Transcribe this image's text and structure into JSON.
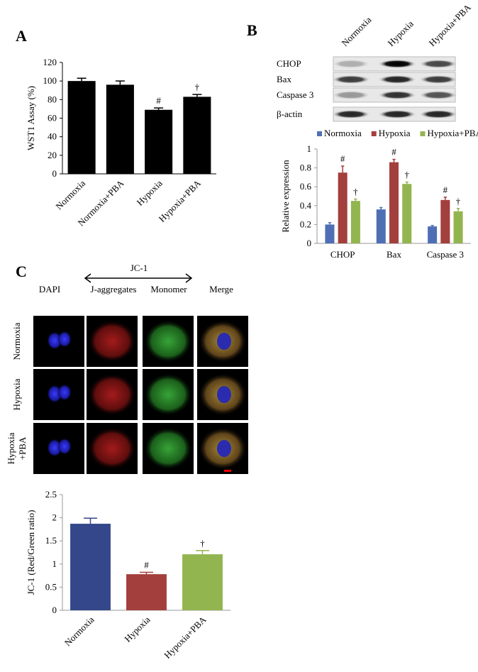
{
  "chart_data": [
    {
      "type": "bar",
      "panel": "A",
      "y_label": "WST1 Assay (%)",
      "categories": [
        "Normoxia",
        "Normoxia+PBA",
        "Hypoxia",
        "Hypoxia+PBA"
      ],
      "values": [
        100,
        96,
        69,
        83
      ],
      "errors": [
        3,
        4,
        2,
        2.5
      ],
      "annotations": [
        null,
        null,
        "#",
        "†"
      ],
      "color": "#000000",
      "ylim": [
        0,
        120
      ],
      "yticks": [
        0,
        20,
        40,
        60,
        80,
        100,
        120
      ]
    },
    {
      "type": "grouped-bar",
      "panel": "B",
      "y_label": "Relative expression",
      "categories": [
        "CHOP",
        "Bax",
        "Caspase 3"
      ],
      "legend": "top",
      "series": [
        {
          "name": "Normoxia",
          "color": "#4f6fb5",
          "values": [
            0.2,
            0.36,
            0.18
          ],
          "errors": [
            0.02,
            0.02,
            0.01
          ],
          "annotations": [
            null,
            null,
            null
          ]
        },
        {
          "name": "Hypoxia",
          "color": "#a33f3c",
          "values": [
            0.75,
            0.86,
            0.46
          ],
          "errors": [
            0.07,
            0.03,
            0.03
          ],
          "annotations": [
            "#",
            "#",
            "#"
          ]
        },
        {
          "name": "Hypoxia+PBA",
          "color": "#93b54f",
          "values": [
            0.45,
            0.63,
            0.34
          ],
          "errors": [
            0.02,
            0.02,
            0.03
          ],
          "annotations": [
            "†",
            "†",
            "†"
          ]
        }
      ],
      "ylim": [
        0,
        1
      ],
      "yticks": [
        0,
        0.2,
        0.4,
        0.6,
        0.8,
        1
      ]
    },
    {
      "type": "bar",
      "panel": "C",
      "y_label": "JC-1 (Red/Green ratio)",
      "categories": [
        "Normoxia",
        "Hypoxia",
        "Hypoxia+PBA"
      ],
      "values": [
        1.87,
        0.78,
        1.21
      ],
      "errors": [
        0.12,
        0.04,
        0.08
      ],
      "annotations": [
        null,
        "#",
        "†"
      ],
      "colors": [
        "#34478a",
        "#a33f3c",
        "#93b54f"
      ],
      "ylim": [
        0,
        2.5
      ],
      "yticks": [
        0,
        0.5,
        1,
        1.5,
        2,
        2.5
      ]
    }
  ],
  "western_blot": {
    "lanes": [
      "Normoxia",
      "Hypoxia",
      "Hypoxia+PBA"
    ],
    "bands": [
      "CHOP",
      "Bax",
      "Caspase 3",
      "β-actin"
    ]
  },
  "microscopy": {
    "bracket_label": "JC-1",
    "columns": [
      "DAPI",
      "J-aggregates",
      "Monomer",
      "Merge"
    ],
    "rows": [
      [
        "Normoxia"
      ],
      [
        "Hypoxia"
      ],
      [
        "Hypoxia",
        "+PBA"
      ]
    ]
  }
}
